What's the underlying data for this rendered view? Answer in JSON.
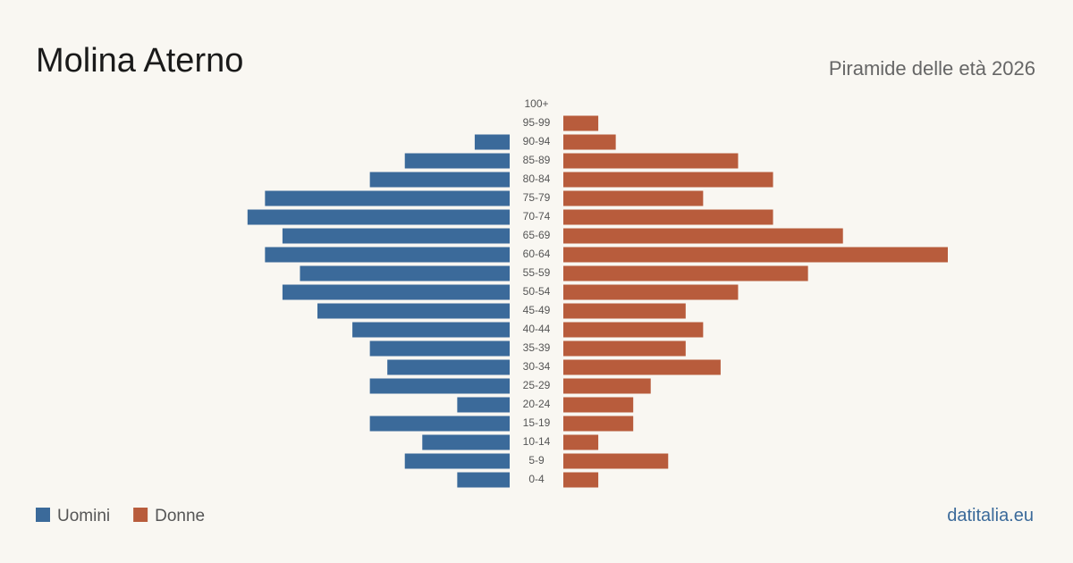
{
  "chart_data": {
    "type": "pyramid",
    "title": "Molina Aterno",
    "subtitle": "Piramide delle età 2026",
    "source": "datitalia.eu",
    "categories": [
      "100+",
      "95-99",
      "90-94",
      "85-89",
      "80-84",
      "75-79",
      "70-74",
      "65-69",
      "60-64",
      "55-59",
      "50-54",
      "45-49",
      "40-44",
      "35-39",
      "30-34",
      "25-29",
      "20-24",
      "15-19",
      "10-14",
      "5-9",
      "0-4"
    ],
    "series": [
      {
        "name": "Uomini",
        "color": "#3b6a9a",
        "values": [
          0,
          0,
          2,
          6,
          8,
          14,
          15,
          13,
          14,
          12,
          13,
          11,
          9,
          8,
          7,
          8,
          3,
          8,
          5,
          6,
          3
        ]
      },
      {
        "name": "Donne",
        "color": "#b85c3c",
        "values": [
          0,
          2,
          3,
          10,
          12,
          8,
          12,
          16,
          22,
          14,
          10,
          7,
          8,
          7,
          9,
          5,
          4,
          4,
          2,
          6,
          2
        ]
      }
    ]
  }
}
